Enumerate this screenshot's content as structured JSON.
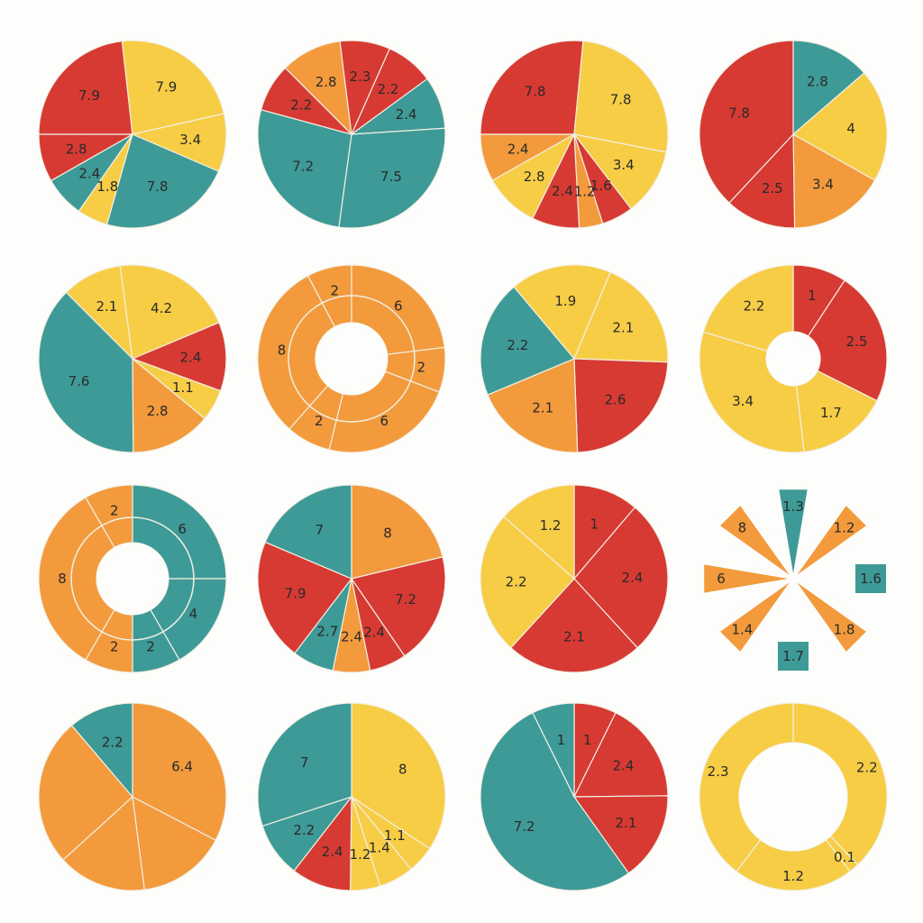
{
  "colors": {
    "red": "#d63a33",
    "yellow": "#f7cd45",
    "teal": "#3e9a96",
    "orange": "#f39a3c",
    "background": "#fdfdfb"
  },
  "chart_data": [
    {
      "type": "pie",
      "slices": [
        {
          "value": 7.9,
          "label": "7.9",
          "color": "red"
        },
        {
          "value": 7.9,
          "label": "7.9",
          "color": "yellow"
        },
        {
          "value": 3.4,
          "label": "3.4",
          "color": "yellow"
        },
        {
          "value": 7.8,
          "label": "7.8",
          "color": "teal"
        },
        {
          "value": 1.8,
          "label": "1.8",
          "color": "yellow"
        },
        {
          "value": 2.4,
          "label": "2.4",
          "color": "teal"
        },
        {
          "value": 2.8,
          "label": "2.8",
          "color": "red"
        }
      ]
    },
    {
      "type": "pie",
      "slices": [
        {
          "value": 2.8,
          "label": "2.8",
          "color": "orange"
        },
        {
          "value": 2.3,
          "label": "2.3",
          "color": "red"
        },
        {
          "value": 2.2,
          "label": "2.2",
          "color": "red"
        },
        {
          "value": 2.4,
          "label": "2.4",
          "color": "teal"
        },
        {
          "value": 7.5,
          "label": "7.5",
          "color": "teal"
        },
        {
          "value": 7.2,
          "label": "7.2",
          "color": "teal"
        },
        {
          "value": 2.2,
          "label": "2.2",
          "color": "red"
        }
      ]
    },
    {
      "type": "pie",
      "slices": [
        {
          "value": 7.8,
          "label": "7.8",
          "color": "red"
        },
        {
          "value": 7.8,
          "label": "7.8",
          "color": "yellow"
        },
        {
          "value": 3.4,
          "label": "3.4",
          "color": "yellow"
        },
        {
          "value": 1.6,
          "label": "1.6",
          "color": "red"
        },
        {
          "value": 1.2,
          "label": "1.2",
          "color": "orange"
        },
        {
          "value": 2.4,
          "label": "2.4",
          "color": "red"
        },
        {
          "value": 2.8,
          "label": "2.8",
          "color": "yellow"
        },
        {
          "value": 2.4,
          "label": "2.4",
          "color": "orange"
        }
      ]
    },
    {
      "type": "pie",
      "slices": [
        {
          "value": 2.8,
          "label": "2.8",
          "color": "teal"
        },
        {
          "value": 4,
          "label": "4",
          "color": "yellow"
        },
        {
          "value": 3.4,
          "label": "3.4",
          "color": "orange"
        },
        {
          "value": 2.5,
          "label": "2.5",
          "color": "red"
        },
        {
          "value": 7.8,
          "label": "7.8",
          "color": "red"
        }
      ]
    },
    {
      "type": "pie",
      "slices": [
        {
          "value": 2.1,
          "label": "2.1",
          "color": "yellow"
        },
        {
          "value": 4.2,
          "label": "4.2",
          "color": "yellow"
        },
        {
          "value": 2.4,
          "label": "2.4",
          "color": "red"
        },
        {
          "value": 1.1,
          "label": "1.1",
          "color": "yellow"
        },
        {
          "value": 2.8,
          "label": "2.8",
          "color": "orange"
        },
        {
          "value": 7.6,
          "label": "7.6",
          "color": "teal"
        }
      ]
    },
    {
      "type": "donut",
      "slices": [
        {
          "value": 6,
          "label": "6",
          "color": "orange"
        },
        {
          "value": 2,
          "label": "2",
          "color": "orange"
        },
        {
          "value": 6,
          "label": "6",
          "color": "orange"
        },
        {
          "value": 2,
          "label": "2",
          "color": "orange"
        },
        {
          "value": 8,
          "label": "8",
          "color": "orange"
        },
        {
          "value": 2,
          "label": "2",
          "color": "orange"
        }
      ]
    },
    {
      "type": "pie",
      "slices": [
        {
          "value": 1.9,
          "label": "1.9",
          "color": "yellow"
        },
        {
          "value": 2.1,
          "label": "2.1",
          "color": "yellow"
        },
        {
          "value": 2.6,
          "label": "2.6",
          "color": "red"
        },
        {
          "value": 2.1,
          "label": "2.1",
          "color": "orange"
        },
        {
          "value": 2.2,
          "label": "2.2",
          "color": "teal"
        }
      ]
    },
    {
      "type": "donut",
      "slices": [
        {
          "value": 1,
          "label": "1",
          "color": "red"
        },
        {
          "value": 2.5,
          "label": "2.5",
          "color": "red"
        },
        {
          "value": 1.7,
          "label": "1.7",
          "color": "yellow"
        },
        {
          "value": 3.4,
          "label": "3.4",
          "color": "yellow"
        },
        {
          "value": 2.2,
          "label": "2.2",
          "color": "yellow"
        }
      ]
    },
    {
      "type": "donut",
      "slices": [
        {
          "value": 6,
          "label": "6",
          "color": "teal"
        },
        {
          "value": 4,
          "label": "4",
          "color": "teal"
        },
        {
          "value": 2,
          "label": "2",
          "color": "teal"
        },
        {
          "value": 2,
          "label": "2",
          "color": "orange"
        },
        {
          "value": 8,
          "label": "8",
          "color": "orange"
        },
        {
          "value": 2,
          "label": "2",
          "color": "orange"
        }
      ]
    },
    {
      "type": "pie",
      "slices": [
        {
          "value": 8,
          "label": "8",
          "color": "orange"
        },
        {
          "value": 7.2,
          "label": "7.2",
          "color": "red"
        },
        {
          "value": 2.4,
          "label": "2.4",
          "color": "red"
        },
        {
          "value": 2.4,
          "label": "2.4",
          "color": "orange"
        },
        {
          "value": 2.7,
          "label": "2.7",
          "color": "teal"
        },
        {
          "value": 7.9,
          "label": "7.9",
          "color": "red"
        },
        {
          "value": 7,
          "label": "7",
          "color": "teal"
        }
      ]
    },
    {
      "type": "pie",
      "slices": [
        {
          "value": 1,
          "label": "1",
          "color": "red"
        },
        {
          "value": 2.4,
          "label": "2.4",
          "color": "red"
        },
        {
          "value": 2.1,
          "label": "2.1",
          "color": "red"
        },
        {
          "value": 2.2,
          "label": "2.2",
          "color": "yellow"
        },
        {
          "value": 1.2,
          "label": "1.2",
          "color": "yellow"
        }
      ]
    },
    {
      "type": "radial",
      "items": [
        {
          "label": "1.3",
          "color": "teal",
          "shape": "wedge"
        },
        {
          "label": "1.2",
          "color": "orange",
          "shape": "wedge"
        },
        {
          "label": "1.6",
          "color": "teal",
          "shape": "square"
        },
        {
          "label": "1.8",
          "color": "orange",
          "shape": "wedge"
        },
        {
          "label": "1.7",
          "color": "teal",
          "shape": "square"
        },
        {
          "label": "1.4",
          "color": "orange",
          "shape": "wedge"
        },
        {
          "label": "6",
          "color": "orange",
          "shape": "wedge"
        },
        {
          "label": "8",
          "color": "orange",
          "shape": "wedge"
        }
      ]
    },
    {
      "type": "pie",
      "slices": [
        {
          "value": 6.4,
          "label": "6.4",
          "color": "orange"
        },
        {
          "value": 3,
          "label": "",
          "color": "orange"
        },
        {
          "value": 3,
          "label": "",
          "color": "orange"
        },
        {
          "value": 5,
          "label": "",
          "color": "orange"
        },
        {
          "value": 2.2,
          "label": "2.2",
          "color": "teal"
        }
      ]
    },
    {
      "type": "pie",
      "slices": [
        {
          "value": 8,
          "label": "8",
          "color": "yellow"
        },
        {
          "value": 1.1,
          "label": "1.1",
          "color": "yellow"
        },
        {
          "value": 1.4,
          "label": "1.4",
          "color": "yellow"
        },
        {
          "value": 1.2,
          "label": "1.2",
          "color": "yellow"
        },
        {
          "value": 2.4,
          "label": "2.4",
          "color": "red"
        },
        {
          "value": 2.2,
          "label": "2.2",
          "color": "teal"
        },
        {
          "value": 7,
          "label": "7",
          "color": "teal"
        }
      ]
    },
    {
      "type": "pie",
      "slices": [
        {
          "value": 1,
          "label": "1",
          "color": "red"
        },
        {
          "value": 2.4,
          "label": "2.4",
          "color": "red"
        },
        {
          "value": 2.1,
          "label": "2.1",
          "color": "red"
        },
        {
          "value": 7.2,
          "label": "7.2",
          "color": "teal"
        },
        {
          "value": 1,
          "label": "1",
          "color": "teal"
        }
      ]
    },
    {
      "type": "donut",
      "slices": [
        {
          "value": 2.2,
          "label": "2.2",
          "color": "yellow"
        },
        {
          "value": 0.1,
          "label": "0.1",
          "color": "yellow"
        },
        {
          "value": 1.2,
          "label": "1.2",
          "color": "yellow"
        },
        {
          "value": 2.3,
          "label": "2.3",
          "color": "yellow"
        }
      ]
    }
  ]
}
